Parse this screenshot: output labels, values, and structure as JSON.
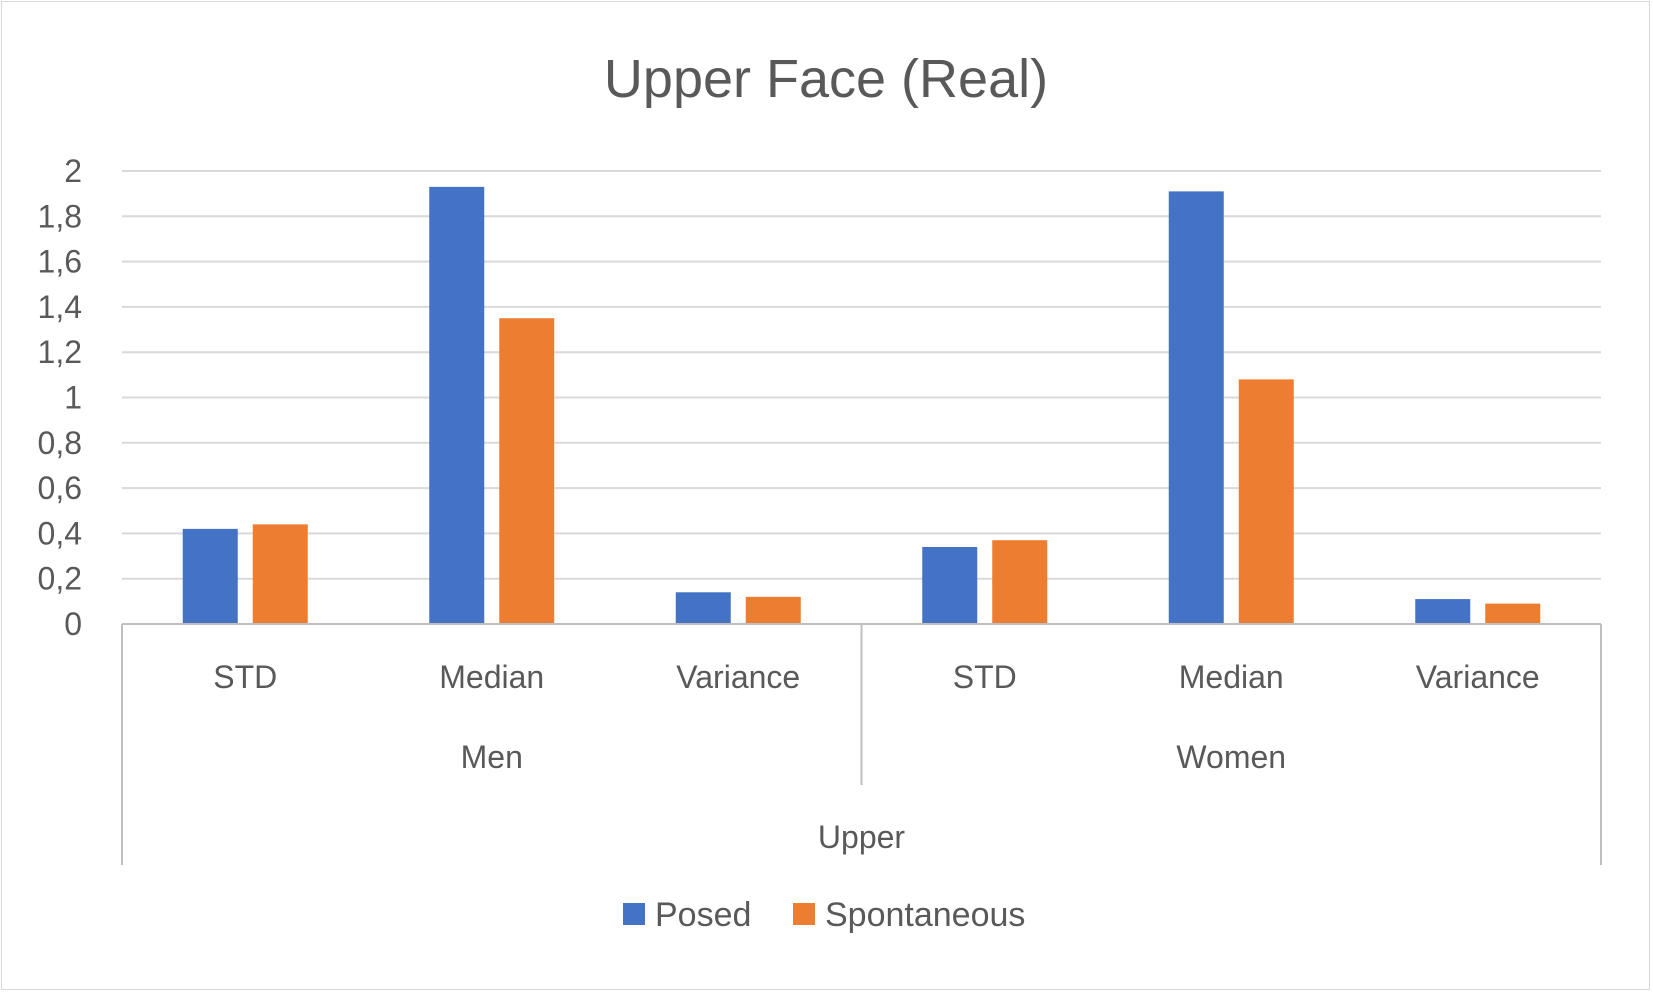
{
  "chart_data": {
    "type": "bar",
    "title": "Upper Face (Real)",
    "xlabel": "",
    "ylabel": "",
    "ylim": [
      0,
      2
    ],
    "yticks": [
      "0",
      "0,2",
      "0,4",
      "0,6",
      "0,8",
      "1",
      "1,2",
      "1,4",
      "1,6",
      "1,8",
      "2"
    ],
    "grid": true,
    "legend_position": "bottom",
    "categories": [
      "STD",
      "Median",
      "Variance",
      "STD",
      "Median",
      "Variance"
    ],
    "groups": [
      {
        "label": "Men",
        "start": 0,
        "count": 3
      },
      {
        "label": "Women",
        "start": 3,
        "count": 3
      }
    ],
    "super_group": "Upper",
    "series": [
      {
        "name": "Posed",
        "color": "#4472C4",
        "values": [
          0.42,
          1.93,
          0.14,
          0.34,
          1.91,
          0.11
        ]
      },
      {
        "name": "Spontaneous",
        "color": "#ED7D31",
        "values": [
          0.44,
          1.35,
          0.12,
          0.37,
          1.08,
          0.09
        ]
      }
    ]
  }
}
